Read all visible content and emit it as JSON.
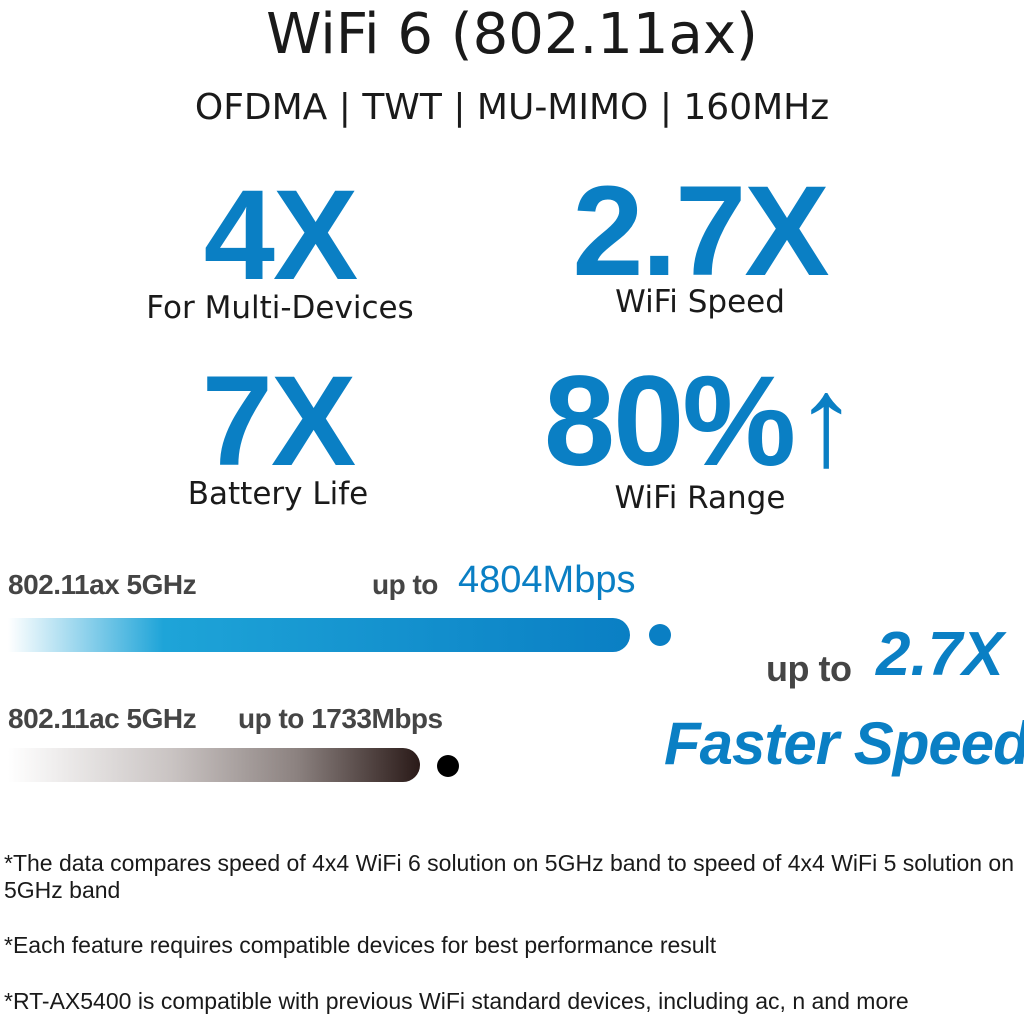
{
  "header": {
    "title": "WiFi 6 (802.11ax)",
    "subtitle": "OFDMA | TWT | MU-MIMO | 160MHz"
  },
  "stats": [
    {
      "value": "4X",
      "caption": "For Multi-Devices"
    },
    {
      "value": "2.7X",
      "caption": "WiFi Speed"
    },
    {
      "value": "7X",
      "caption": "Battery Life"
    },
    {
      "value": "80%",
      "arrow": "↑",
      "caption": "WiFi Range"
    }
  ],
  "comparison": {
    "ax": {
      "label": "802.11ax 5GHz",
      "prefix": "up to",
      "speed": "4804Mbps",
      "mbps": 4804
    },
    "ac": {
      "label": "802.11ac 5GHz",
      "prefix": "up to",
      "speed": "1733Mbps",
      "mbps": 1733
    },
    "headline_prefix": "up to",
    "headline_value": "2.7X",
    "headline_text": "Faster Speed"
  },
  "footnotes": [
    "*The data compares speed of 4x4 WiFi 6 solution on 5GHz band to speed of 4x4 WiFi 5 solution on 5GHz band",
    "*Each feature requires compatible devices for best performance result",
    "*RT-AX5400 is compatible with previous WiFi standard devices, including ac, n and more"
  ],
  "colors": {
    "accent": "#0a7fc4",
    "text": "#1a1a1a",
    "label": "#454545"
  }
}
